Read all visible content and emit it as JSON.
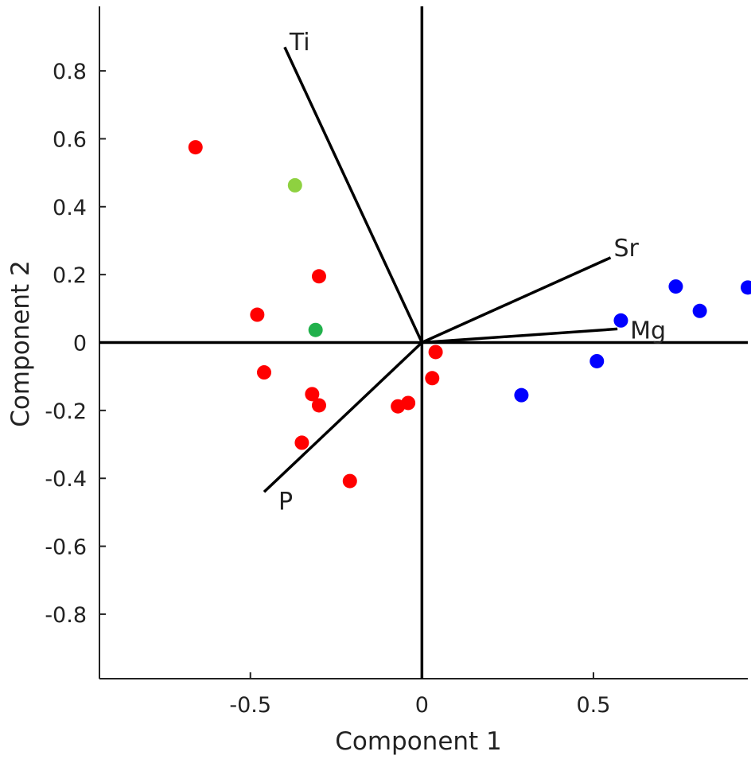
{
  "chart_data": {
    "type": "scatter",
    "subtype": "biplot",
    "xlabel": "Component 1",
    "ylabel": "Component 2",
    "xlim": [
      -0.94,
      0.95
    ],
    "ylim": [
      -0.99,
      0.99
    ],
    "x_ticks": [
      {
        "value": -0.5,
        "label": "-0.5"
      },
      {
        "value": 0,
        "label": "0"
      },
      {
        "value": 0.5,
        "label": "0.5"
      }
    ],
    "y_ticks": [
      {
        "value": 0.8,
        "label": "0.8"
      },
      {
        "value": 0.6,
        "label": "0.6"
      },
      {
        "value": 0.4,
        "label": "0.4"
      },
      {
        "value": 0.2,
        "label": "0.2"
      },
      {
        "value": 0,
        "label": "0"
      },
      {
        "value": -0.2,
        "label": "-0.2"
      },
      {
        "value": -0.4,
        "label": "-0.4"
      },
      {
        "value": -0.6,
        "label": "-0.6"
      },
      {
        "value": -0.8,
        "label": "-0.8"
      }
    ],
    "grid": false,
    "vectors": [
      {
        "label": "Ti",
        "x": -0.4,
        "y": 0.87
      },
      {
        "label": "Sr",
        "x": 0.55,
        "y": 0.25
      },
      {
        "label": "Mg",
        "x": 0.57,
        "y": 0.04
      },
      {
        "label": "P",
        "x": -0.46,
        "y": -0.44
      }
    ],
    "series": [
      {
        "color": "#ff0000",
        "points": [
          [
            -0.66,
            0.575
          ],
          [
            -0.3,
            0.195
          ],
          [
            -0.48,
            0.082
          ],
          [
            -0.46,
            -0.088
          ],
          [
            -0.32,
            -0.152
          ],
          [
            -0.3,
            -0.185
          ],
          [
            -0.35,
            -0.295
          ],
          [
            -0.21,
            -0.408
          ],
          [
            -0.07,
            -0.188
          ],
          [
            -0.04,
            -0.178
          ],
          [
            0.04,
            -0.028
          ],
          [
            0.03,
            -0.105
          ]
        ]
      },
      {
        "color": "#8ed140",
        "points": [
          [
            -0.37,
            0.463
          ]
        ]
      },
      {
        "color": "#22b14c",
        "points": [
          [
            -0.31,
            0.037
          ]
        ]
      },
      {
        "color": "#0000ff",
        "points": [
          [
            0.29,
            -0.155
          ],
          [
            0.51,
            -0.055
          ],
          [
            0.58,
            0.065
          ],
          [
            0.74,
            0.165
          ],
          [
            0.81,
            0.093
          ],
          [
            0.95,
            0.162
          ]
        ]
      }
    ]
  }
}
